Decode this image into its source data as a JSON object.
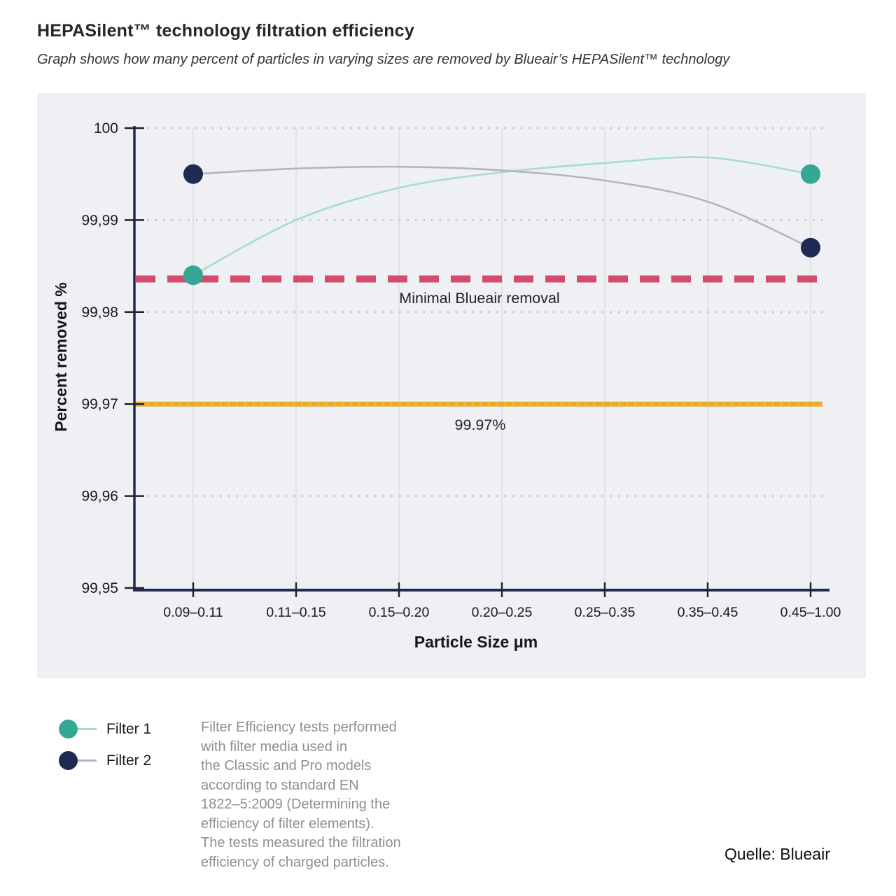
{
  "header": {
    "title": "HEPASilent™ technology filtration efficiency",
    "subtitle": "Graph shows how many percent of particles in varying sizes are removed by Blueair’s HEPASilent™ technology"
  },
  "chart_data": {
    "type": "line",
    "title": "HEPASilent™ technology filtration efficiency",
    "categories": [
      "0.09–0.11",
      "0.11–0.15",
      "0.15–0.20",
      "0.20–0.25",
      "0.25–0.35",
      "0.35–0.45",
      "0.45–1.00"
    ],
    "xlabel": "Particle Size μm",
    "ylabel": "Percent removed %",
    "ylim": [
      99.95,
      100
    ],
    "y_ticks": [
      {
        "value": 100,
        "label": "100"
      },
      {
        "value": 99.99,
        "label": "99,99"
      },
      {
        "value": 99.98,
        "label": "99,98"
      },
      {
        "value": 99.97,
        "label": "99,97"
      },
      {
        "value": 99.96,
        "label": "99,96"
      },
      {
        "value": 99.95,
        "label": "99,95"
      }
    ],
    "grid": true,
    "legend_position": "bottom-left",
    "series": [
      {
        "name": "Filter 1",
        "marker_color": "#35a895",
        "line_color": "#a6dccb",
        "markers": "endpoints",
        "values": [
          99.984,
          99.99,
          99.9935,
          99.9952,
          99.9962,
          99.9968,
          99.995
        ]
      },
      {
        "name": "Filter 2",
        "marker_color": "#1e2a52",
        "line_color": "#b5b2c8",
        "markers": "endpoints",
        "values": [
          99.995,
          99.9956,
          99.9958,
          99.9954,
          99.9943,
          99.992,
          99.987
        ]
      }
    ],
    "reference_lines": [
      {
        "label": "Minimal Blueair removal",
        "value": 99.9836,
        "color": "#d64a6e",
        "style": "dashed"
      },
      {
        "label": "99.97%",
        "value": 99.97,
        "color": "#efa91c",
        "style": "solid"
      }
    ]
  },
  "note": {
    "lines": [
      "Filter Efficiency tests performed",
      "with filter media used in",
      "the Classic and Pro models",
      "according to standard EN",
      "1822–5:2009 (Determining the",
      "efficiency of filter elements).",
      "The tests measured the filtration",
      "efficiency of charged particles."
    ]
  },
  "source": {
    "label": "Quelle: Blueair"
  },
  "colors": {
    "panel_bg": "#eff0f4",
    "axis": "#1e2a52",
    "tick": "#20242f",
    "grid_dotted": "#c3c3cb",
    "grid_vertical": "#d7d8dd",
    "text_dark": "#191922"
  }
}
